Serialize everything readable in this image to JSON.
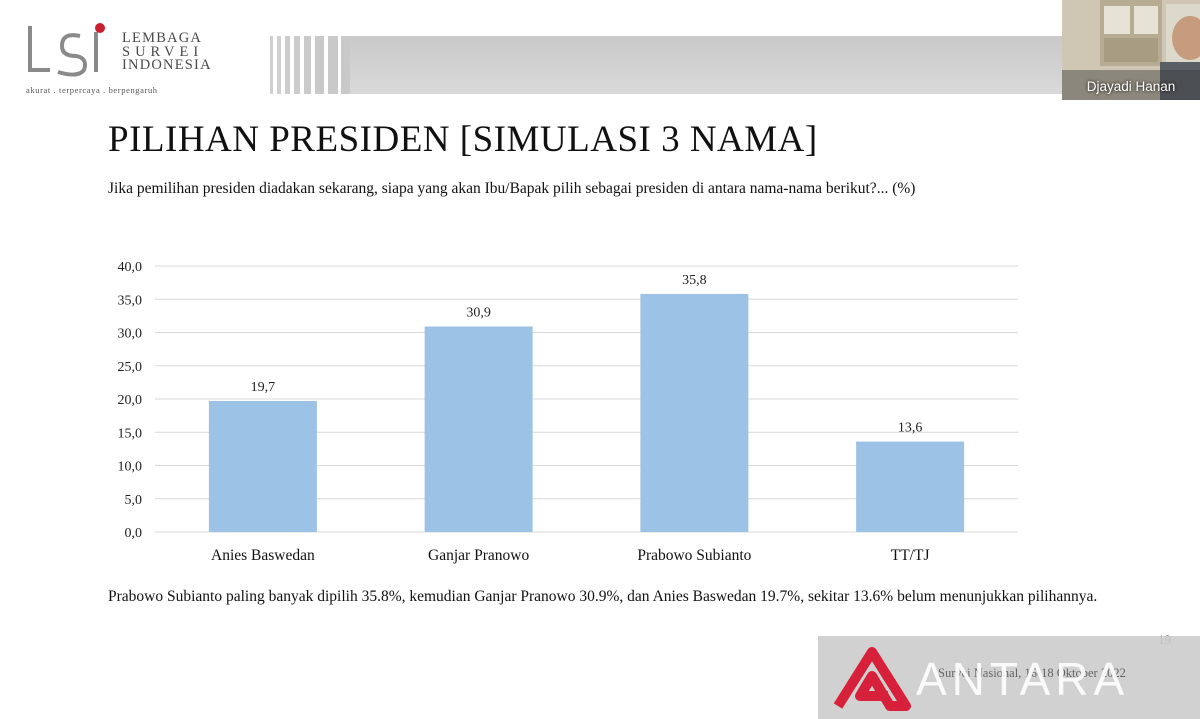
{
  "header": {
    "logo": {
      "mark_text": "LSI",
      "name_lines": [
        "LEMBAGA",
        "SURVEI",
        "INDONESIA"
      ],
      "tagline": "akurat . terpercaya . berpengaruh"
    }
  },
  "webcam": {
    "speaker_name": "Djayadi Hanan"
  },
  "slide": {
    "title": "PILIHAN PRESIDEN [SIMULASI 3 NAMA]",
    "question": "Jika pemilihan presiden diadakan sekarang, siapa yang akan Ibu/Bapak pilih sebagai presiden di antara nama-nama berikut?... (%)",
    "summary": "Prabowo Subianto paling banyak dipilih 35.8%, kemudian Ganjar Pranowo 30.9%, dan Anies Baswedan 19.7%, sekitar 13.6% belum menunjukkan pilihannya.",
    "page_number": "19"
  },
  "footer": {
    "source_text": "Survei Nasional, 16-18 Oktober 2022",
    "watermark": "ANTARA"
  },
  "colors": {
    "bar": "#9cc2e5",
    "grid": "#d9d9d9",
    "watermark_red": "#d7203a"
  },
  "chart_data": {
    "type": "bar",
    "categories": [
      "Anies Baswedan",
      "Ganjar Pranowo",
      "Prabowo Subianto",
      "TT/TJ"
    ],
    "values": [
      19.7,
      30.9,
      35.8,
      13.6
    ],
    "value_labels": [
      "19,7",
      "30,9",
      "35,8",
      "13,6"
    ],
    "y_ticks": [
      "0,0",
      "5,0",
      "10,0",
      "15,0",
      "20,0",
      "25,0",
      "30,0",
      "35,0",
      "40,0"
    ],
    "ylim": [
      0,
      40
    ],
    "grid": true,
    "legend": "none"
  }
}
